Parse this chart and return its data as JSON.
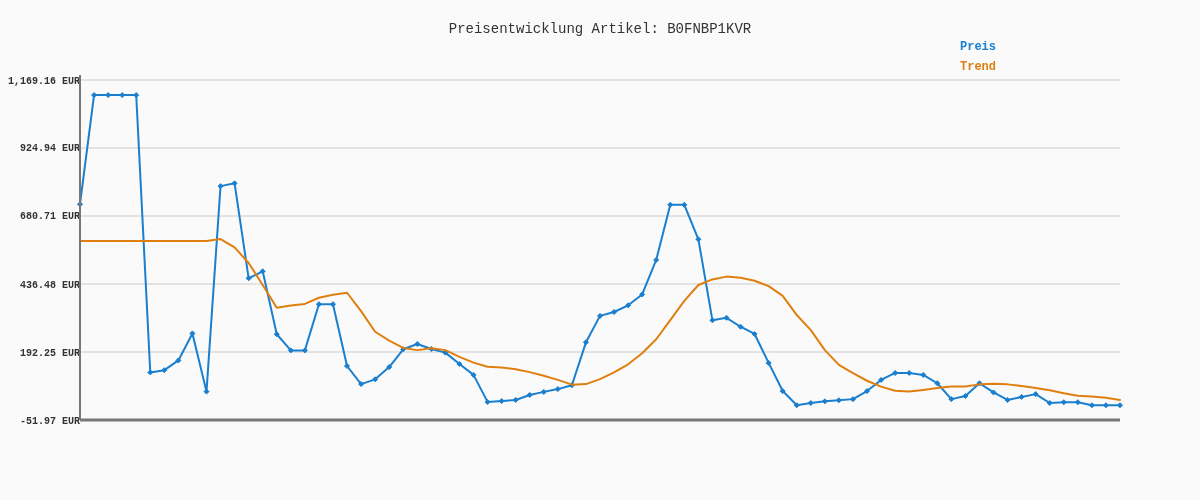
{
  "chart_data": {
    "type": "line",
    "title": "Preisentwicklung Artikel: B0FNBP1KVR",
    "categories": [
      null,
      null,
      null,
      null,
      null,
      null,
      null,
      null,
      null,
      null,
      null,
      null,
      null,
      null,
      null,
      null,
      null,
      null,
      null,
      null,
      null,
      null,
      null,
      null,
      null,
      null,
      null,
      null,
      null,
      null,
      null,
      null,
      null,
      null,
      null,
      null,
      null,
      null,
      null,
      null,
      null,
      null,
      null,
      null,
      null,
      null,
      null,
      null,
      null,
      null,
      null,
      null,
      null,
      null,
      null,
      null,
      null,
      null,
      null,
      null,
      null,
      null,
      null,
      null,
      null,
      null,
      null,
      null,
      null,
      null,
      null,
      null,
      null,
      null,
      null
    ],
    "series": [
      {
        "name": "Preis",
        "color": "#1a7fcf",
        "marker": "diamond",
        "values": [
          723,
          1115,
          1115,
          1115,
          1115,
          119,
          127,
          162,
          259,
          50,
          788,
          798,
          457,
          482,
          256,
          198,
          198,
          364,
          364,
          142,
          77,
          94,
          138,
          202,
          221,
          203,
          190,
          149,
          110,
          13,
          16,
          20,
          38,
          49,
          59,
          73,
          227,
          322,
          336,
          360,
          399,
          523,
          721,
          721,
          597,
          306,
          315,
          283,
          257,
          153,
          52,
          1,
          9,
          15,
          19,
          23,
          52,
          92,
          117,
          117,
          110,
          80,
          23,
          34,
          80,
          47,
          20,
          31,
          41,
          9,
          12,
          12,
          1,
          1,
          1
        ]
      },
      {
        "name": "Trend",
        "color": "#e07f10",
        "marker": "none",
        "values": [
          591,
          591,
          591,
          591,
          591,
          591,
          591,
          591,
          591,
          591,
          598,
          568,
          512,
          433,
          351,
          359,
          365,
          387,
          398,
          405,
          339,
          265,
          233,
          207,
          199,
          206,
          199,
          175,
          154,
          139,
          137,
          130,
          120,
          107,
          92,
          75,
          77,
          95,
          119,
          148,
          188,
          238,
          307,
          376,
          433,
          453,
          463,
          459,
          448,
          429,
          394,
          325,
          271,
          199,
          146,
          116,
          89,
          68,
          53,
          50,
          56,
          63,
          68,
          68,
          76,
          78,
          76,
          70,
          63,
          55,
          44,
          35,
          32,
          28,
          20
        ]
      }
    ],
    "ylim": [
      -51.97,
      1169.16
    ],
    "yticks": [
      {
        "value": -51.97,
        "label": "-51.97 EUR"
      },
      {
        "value": 192.25,
        "label": "192.25 EUR"
      },
      {
        "value": 436.48,
        "label": "436.48 EUR"
      },
      {
        "value": 680.71,
        "label": "680.71 EUR"
      },
      {
        "value": 924.94,
        "label": "924.94 EUR"
      },
      {
        "value": 1169.16,
        "label": "1,169.16 EUR"
      }
    ],
    "grid": "y",
    "legend": "top right",
    "tick_labels": "y"
  }
}
